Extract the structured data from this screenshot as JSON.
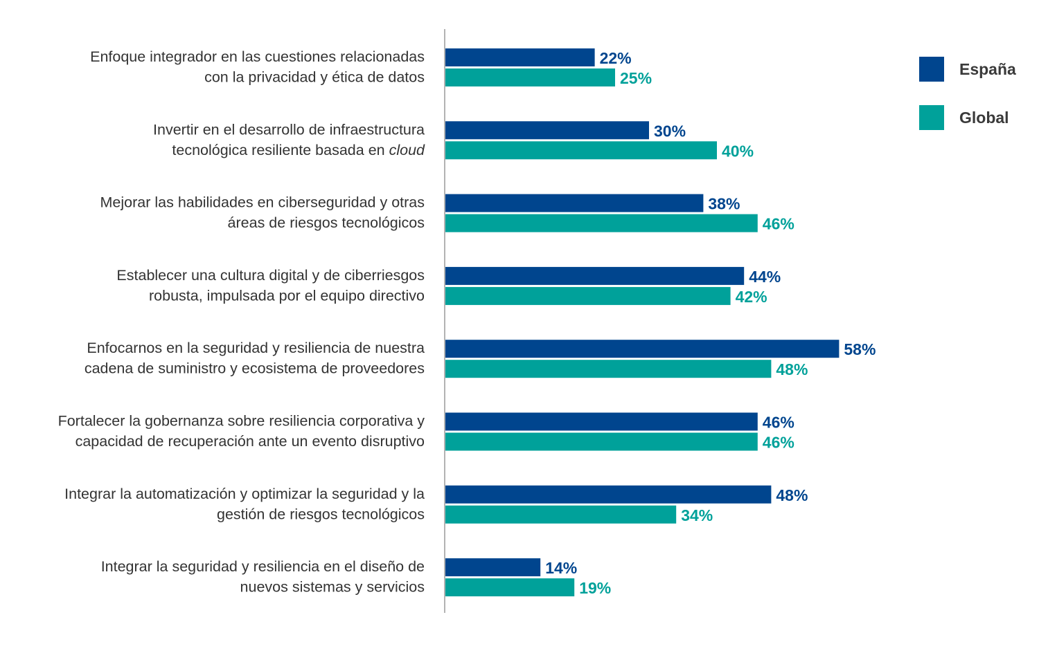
{
  "chart_data": {
    "type": "bar",
    "orientation": "horizontal",
    "title": "",
    "xlabel": "",
    "ylabel": "",
    "xlim": [
      0,
      60
    ],
    "grid": false,
    "legend_position": "top-right",
    "value_suffix": "%",
    "categories": [
      {
        "lines": [
          "Enfoque integrador en las cuestiones relacionadas",
          "con la privacidad y ética de datos"
        ]
      },
      {
        "lines": [
          "Invertir en el desarrollo de infraestructura",
          "tecnológica resiliente basada en "
        ],
        "italic_suffix": "cloud"
      },
      {
        "lines": [
          "Mejorar las habilidades en ciberseguridad y otras",
          "áreas de riesgos tecnológicos"
        ]
      },
      {
        "lines": [
          "Establecer una cultura digital y de ciberriesgos",
          "robusta, impulsada por el equipo directivo"
        ]
      },
      {
        "lines": [
          "Enfocarnos en la seguridad y resiliencia de nuestra",
          "cadena de suministro y ecosistema de proveedores"
        ]
      },
      {
        "lines": [
          "Fortalecer la gobernanza sobre resiliencia corporativa y",
          "capacidad de recuperación ante un evento disruptivo"
        ]
      },
      {
        "lines": [
          "Integrar la automatización y optimizar la seguridad y la",
          "gestión de riesgos tecnológicos"
        ]
      },
      {
        "lines": [
          "Integrar la seguridad y resiliencia en el diseño de",
          "nuevos sistemas y servicios"
        ]
      }
    ],
    "series": [
      {
        "name": "España",
        "color": "#00458e",
        "values": [
          22,
          30,
          38,
          44,
          58,
          46,
          48,
          14
        ]
      },
      {
        "name": "Global",
        "color": "#00a19a",
        "values": [
          25,
          40,
          46,
          42,
          48,
          46,
          34,
          19
        ]
      }
    ]
  },
  "axis_color": "#9a9a9a"
}
